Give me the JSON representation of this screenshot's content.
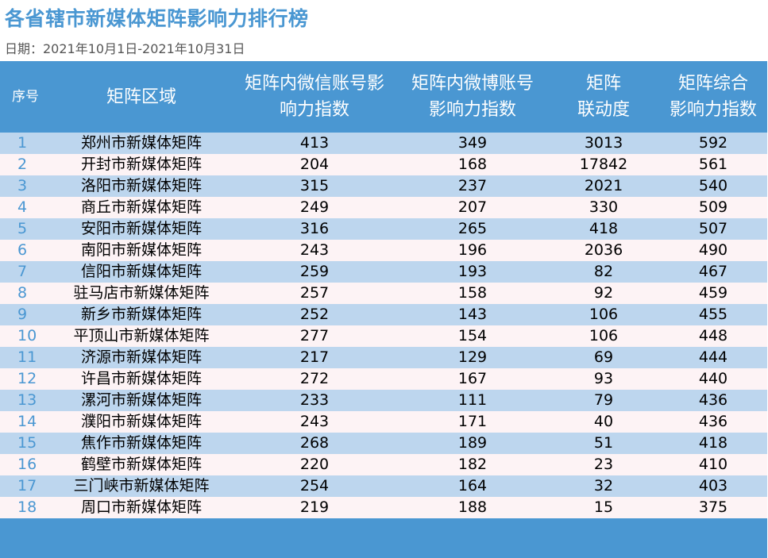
{
  "title": "各省辖市新媒体矩阵影响力排行榜",
  "date_text": "日期：2021年10月1日-2021年10月31日",
  "colors": {
    "accent": "#4a97d2",
    "row_odd": "#bdd6ee",
    "row_even": "#fdf3f5"
  },
  "table": {
    "headers": [
      "序号",
      "矩阵区域",
      "矩阵内微信账号影\n响力指数",
      "矩阵内微博账号\n影响力指数",
      "矩阵\n联动度",
      "矩阵综合\n影响力指数"
    ],
    "rows": [
      [
        "1",
        "郑州市新媒体矩阵",
        "413",
        "349",
        "3013",
        "592"
      ],
      [
        "2",
        "开封市新媒体矩阵",
        "204",
        "168",
        "17842",
        "561"
      ],
      [
        "3",
        "洛阳市新媒体矩阵",
        "315",
        "237",
        "2021",
        "540"
      ],
      [
        "4",
        "商丘市新媒体矩阵",
        "249",
        "207",
        "330",
        "509"
      ],
      [
        "5",
        "安阳市新媒体矩阵",
        "316",
        "265",
        "418",
        "507"
      ],
      [
        "6",
        "南阳市新媒体矩阵",
        "243",
        "196",
        "2036",
        "490"
      ],
      [
        "7",
        "信阳市新媒体矩阵",
        "259",
        "193",
        "82",
        "467"
      ],
      [
        "8",
        "驻马店市新媒体矩阵",
        "257",
        "158",
        "92",
        "459"
      ],
      [
        "9",
        "新乡市新媒体矩阵",
        "252",
        "143",
        "106",
        "455"
      ],
      [
        "10",
        "平顶山市新媒体矩阵",
        "277",
        "154",
        "106",
        "448"
      ],
      [
        "11",
        "济源市新媒体矩阵",
        "217",
        "129",
        "69",
        "444"
      ],
      [
        "12",
        "许昌市新媒体矩阵",
        "272",
        "167",
        "93",
        "440"
      ],
      [
        "13",
        "漯河市新媒体矩阵",
        "233",
        "111",
        "79",
        "436"
      ],
      [
        "14",
        "濮阳市新媒体矩阵",
        "243",
        "171",
        "40",
        "436"
      ],
      [
        "15",
        "焦作市新媒体矩阵",
        "268",
        "189",
        "51",
        "418"
      ],
      [
        "16",
        "鹤壁市新媒体矩阵",
        "220",
        "182",
        "23",
        "410"
      ],
      [
        "17",
        "三门峡市新媒体矩阵",
        "254",
        "164",
        "32",
        "403"
      ],
      [
        "18",
        "周口市新媒体矩阵",
        "219",
        "188",
        "15",
        "375"
      ]
    ]
  }
}
